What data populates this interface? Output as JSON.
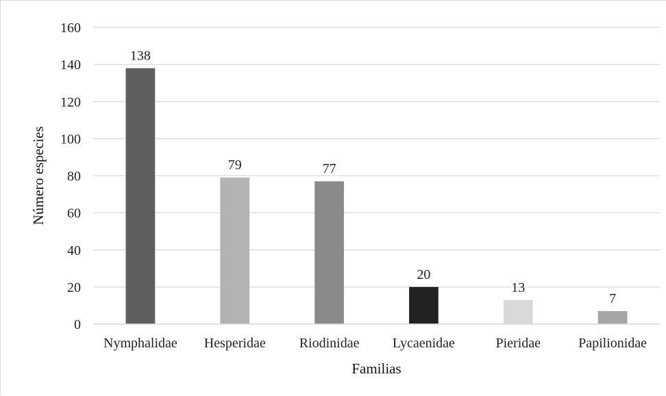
{
  "chart_data": {
    "type": "bar",
    "title": "",
    "xlabel": "Familias",
    "ylabel": "Número especies",
    "categories": [
      "Nymphalidae",
      "Hesperidae",
      "Riodinidae",
      "Lycaenidae",
      "Pieridae",
      "Papilionidae"
    ],
    "values": [
      138,
      79,
      77,
      20,
      13,
      7
    ],
    "data_labels": [
      "138",
      "79",
      "77",
      "20",
      "13",
      "7"
    ],
    "bar_colors": [
      "#5f5f5f",
      "#b3b3b3",
      "#8a8a8a",
      "#222222",
      "#d9d9d9",
      "#a6a6a6"
    ],
    "ylim": [
      0,
      160
    ],
    "yticks": [
      0,
      20,
      40,
      60,
      80,
      100,
      120,
      140,
      160
    ],
    "grid": true,
    "legend": "none"
  }
}
